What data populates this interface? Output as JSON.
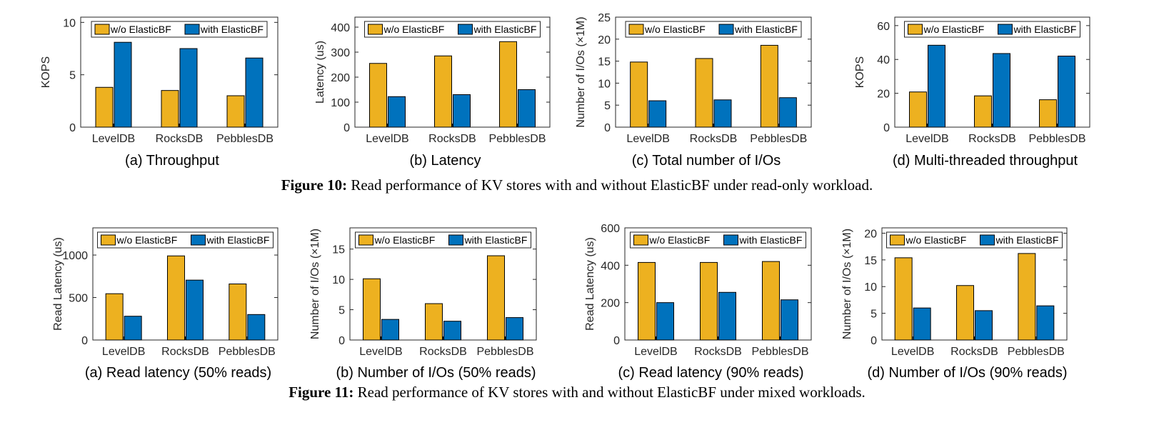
{
  "figure10": {
    "label": "Figure 10:",
    "text": " Read performance of KV stores with and without ElasticBF under read-only workload."
  },
  "figure11": {
    "label": "Figure 11:",
    "text": " Read performance of KV stores with and without ElasticBF under mixed workloads."
  },
  "colors": {
    "without": "#EDB120",
    "with": "#0072BD"
  },
  "chart_data": [
    {
      "id": "fig10a",
      "type": "bar",
      "caption": "(a)  Throughput",
      "categories": [
        "LevelDB",
        "RocksDB",
        "PebblesDB"
      ],
      "series": [
        {
          "name": "w/o ElasticBF",
          "values": [
            3.8,
            3.5,
            3.0
          ]
        },
        {
          "name": "with ElasticBF",
          "values": [
            8.1,
            7.5,
            6.6
          ]
        }
      ],
      "ylabel": "KOPS",
      "ylim": [
        0,
        10.5
      ],
      "yticks": [
        0,
        5,
        10
      ],
      "legend": "top",
      "grid": false
    },
    {
      "id": "fig10b",
      "type": "bar",
      "caption": "(b)  Latency",
      "categories": [
        "LevelDB",
        "RocksDB",
        "PebblesDB"
      ],
      "series": [
        {
          "name": "w/o ElasticBF",
          "values": [
            255,
            285,
            342
          ]
        },
        {
          "name": "with ElasticBF",
          "values": [
            122,
            130,
            150
          ]
        }
      ],
      "ylabel": "Latency (us)",
      "ylim": [
        0,
        440
      ],
      "yticks": [
        0,
        100,
        200,
        300,
        400
      ],
      "legend": "top",
      "grid": false
    },
    {
      "id": "fig10c",
      "type": "bar",
      "caption": "(c)  Total number of I/Os",
      "categories": [
        "LevelDB",
        "RocksDB",
        "PebblesDB"
      ],
      "series": [
        {
          "name": "w/o ElasticBF",
          "values": [
            14.8,
            15.6,
            18.6
          ]
        },
        {
          "name": "with ElasticBF",
          "values": [
            6.0,
            6.2,
            6.7
          ]
        }
      ],
      "ylabel": "Number of I/Os (×1M)",
      "ylim": [
        0,
        25
      ],
      "yticks": [
        0,
        5,
        10,
        15,
        20,
        25
      ],
      "legend": "top",
      "grid": false
    },
    {
      "id": "fig10d",
      "type": "bar",
      "caption": "(d)  Multi-threaded throughput",
      "categories": [
        "LevelDB",
        "RocksDB",
        "PebblesDB"
      ],
      "series": [
        {
          "name": "w/o ElasticBF",
          "values": [
            20.8,
            18.5,
            16.2
          ]
        },
        {
          "name": "with ElasticBF",
          "values": [
            48.4,
            43.5,
            42.0
          ]
        }
      ],
      "ylabel": "KOPS",
      "ylim": [
        0,
        65
      ],
      "yticks": [
        0,
        20,
        40,
        60
      ],
      "legend": "top",
      "grid": false
    },
    {
      "id": "fig11a",
      "type": "bar",
      "caption": "(a)  Read latency (50% reads)",
      "categories": [
        "LevelDB",
        "RocksDB",
        "PebblesDB"
      ],
      "series": [
        {
          "name": "w/o ElasticBF",
          "values": [
            545,
            990,
            660
          ]
        },
        {
          "name": "with ElasticBF",
          "values": [
            280,
            705,
            300
          ]
        }
      ],
      "ylabel": "Read Latency (us)",
      "ylim": [
        0,
        1320
      ],
      "yticks": [
        0,
        500,
        1000
      ],
      "legend": "top",
      "grid": false
    },
    {
      "id": "fig11b",
      "type": "bar",
      "caption": "(b)  Number of I/Os (50% reads)",
      "categories": [
        "LevelDB",
        "RocksDB",
        "PebblesDB"
      ],
      "series": [
        {
          "name": "w/o ElasticBF",
          "values": [
            10.1,
            6.0,
            13.9
          ]
        },
        {
          "name": "with ElasticBF",
          "values": [
            3.4,
            3.1,
            3.7
          ]
        }
      ],
      "ylabel": "Number of I/Os (×1M)",
      "ylim": [
        0,
        18.5
      ],
      "yticks": [
        0,
        5,
        10,
        15
      ],
      "legend": "top",
      "grid": false
    },
    {
      "id": "fig11c",
      "type": "bar",
      "caption": "(c)  Read latency (90% reads)",
      "categories": [
        "LevelDB",
        "RocksDB",
        "PebblesDB"
      ],
      "series": [
        {
          "name": "w/o ElasticBF",
          "values": [
            415,
            415,
            420
          ]
        },
        {
          "name": "with ElasticBF",
          "values": [
            200,
            255,
            215
          ]
        }
      ],
      "ylabel": "Read Latency (us)",
      "ylim": [
        0,
        600
      ],
      "yticks": [
        0,
        200,
        400,
        600
      ],
      "legend": "top",
      "grid": false
    },
    {
      "id": "fig11d",
      "type": "bar",
      "caption": "(d)  Number of I/Os (90% reads)",
      "categories": [
        "LevelDB",
        "RocksDB",
        "PebblesDB"
      ],
      "series": [
        {
          "name": "w/o ElasticBF",
          "values": [
            15.4,
            10.2,
            16.2
          ]
        },
        {
          "name": "with ElasticBF",
          "values": [
            6.0,
            5.5,
            6.4
          ]
        }
      ],
      "ylabel": "Number of I/Os (×1M)",
      "ylim": [
        0,
        21
      ],
      "yticks": [
        0,
        5,
        10,
        15,
        20
      ],
      "legend": "top",
      "grid": false
    }
  ]
}
